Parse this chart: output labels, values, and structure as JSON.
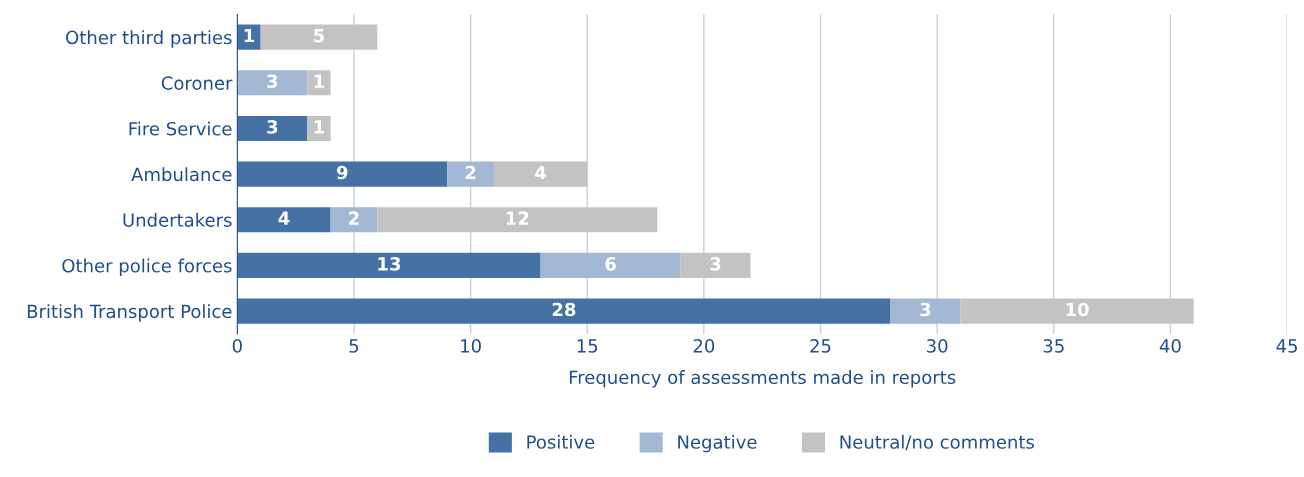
{
  "chart_data": {
    "type": "bar",
    "orientation": "horizontal",
    "stacked": true,
    "categories": [
      "Other third parties",
      "Coroner",
      "Fire Service",
      "Ambulance",
      "Undertakers",
      "Other police forces",
      "British Transport Police"
    ],
    "series": [
      {
        "name": "Positive",
        "color": "#4571a5",
        "values": [
          1,
          0,
          3,
          9,
          4,
          13,
          28
        ],
        "value_labels": [
          "1",
          null,
          "3",
          "9",
          "4",
          "13",
          "28"
        ]
      },
      {
        "name": "Negative",
        "color": "#a2b8d3",
        "values": [
          0,
          3,
          0,
          2,
          2,
          6,
          3
        ],
        "value_labels": [
          null,
          "3",
          null,
          "2",
          "2",
          "6",
          "3"
        ]
      },
      {
        "name": "Neutral/no comments",
        "color": "#c3c3c3",
        "values": [
          5,
          1,
          1,
          4,
          12,
          3,
          10
        ],
        "value_labels": [
          "5",
          "1",
          "1",
          "4",
          "12",
          "3",
          "10"
        ]
      }
    ],
    "xlabel": "Frequency of assessments made in reports",
    "xlim": [
      0,
      45
    ],
    "xticks": [
      0,
      5,
      10,
      15,
      20,
      25,
      30,
      35,
      40,
      45
    ],
    "grid": "x",
    "legend": "bottom"
  }
}
